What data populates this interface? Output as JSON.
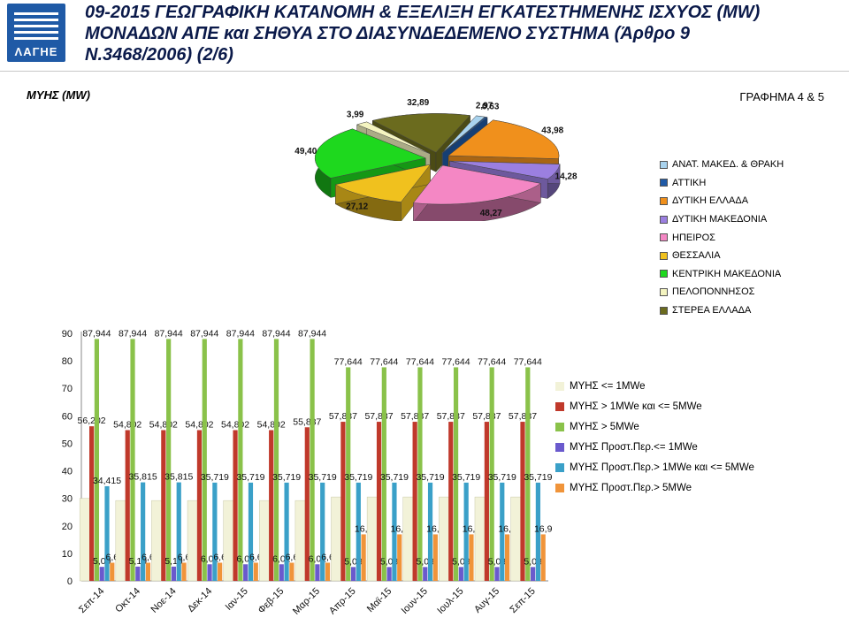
{
  "header": {
    "logo_text": "ΛΑΓΗΕ",
    "title_line1": "09-2015 ΓΕΩΓΡΑΦΙΚΗ ΚΑΤΑΝΟΜΗ & ΕΞΕΛΙΞΗ ΕΓΚΑΤΕΣΤΗΜΕΝΗΣ ΙΣΧΥΟΣ (MW)",
    "title_line2": "ΜΟΝΑΔΩΝ ΑΠΕ και ΣΗΘΥΑ ΣΤΟ ΔΙΑΣΥΝΔΕΔΕΜΕΝΟ ΣΥΣΤΗΜΑ (Άρθρο 9",
    "title_line3": "Ν.3468/2006) (2/6)"
  },
  "section": {
    "left_label": "ΜΥΗΣ (MW)",
    "right_label": "ΓΡΑΦΗΜΑ 4 & 5"
  },
  "chart_data": [
    {
      "type": "pie",
      "title": "",
      "categories": [
        "ΑΝΑΤ. ΜΑΚΕΔ. & ΘΡΑΚΗ",
        "ΑΤΤΙΚΗ",
        "ΔΥΤΙΚΗ ΕΛΛΑΔΑ",
        "ΔΥΤΙΚΗ ΜΑΚΕΔΟΝΙΑ",
        "ΗΠΕΙΡΟΣ",
        "ΘΕΣΣΑΛΙΑ",
        "ΚΕΝΤΡΙΚΗ ΜΑΚΕΔΟΝΙΑ",
        "ΠΕΛΟΠΟΝΝΗΣΟΣ",
        "ΣΤΕΡΕΑ ΕΛΛΑΔΑ"
      ],
      "values": [
        2.97,
        0.63,
        43.98,
        14.28,
        48.27,
        27.12,
        49.4,
        3.99,
        32.89
      ],
      "labels": [
        "2,97",
        "0,63",
        "43,98",
        "14,28",
        "48,27",
        "27,12",
        "49,40",
        "3,99",
        "32,89"
      ],
      "colors": [
        "#a9d3ee",
        "#1f5aa6",
        "#f0901c",
        "#9b7fe0",
        "#f487c4",
        "#f0c11e",
        "#1ed81e",
        "#f4f4c0",
        "#6b6b1e"
      ],
      "legend_position": "right"
    },
    {
      "type": "bar",
      "title": "",
      "xlabel": "",
      "ylabel": "",
      "ylim": [
        0,
        90
      ],
      "yticks": [
        "0",
        "10",
        "20",
        "30",
        "40",
        "50",
        "60",
        "70",
        "80",
        "90"
      ],
      "grid": false,
      "legend_position": "right",
      "categories": [
        "Σεπ-14",
        "Οκτ-14",
        "Νοε-14",
        "Δεκ-14",
        "Ιαν-15",
        "Φεβ-15",
        "Μαρ-15",
        "Απρ-15",
        "Μαϊ-15",
        "Ιουν-15",
        "Ιουλ-15",
        "Αυγ-15",
        "Σεπ-15"
      ],
      "series": [
        {
          "name": "ΜΥΗΣ <= 1MWe",
          "color": "#f2f2d8",
          "values": [
            30,
            29.2,
            29.2,
            29.2,
            29.2,
            29.2,
            29.2,
            30.5,
            30.5,
            30.5,
            30.5,
            30.5,
            30.5
          ],
          "labels": []
        },
        {
          "name": "ΜΥΗΣ > 1MWe και <= 5MWe",
          "color": "#c0392b",
          "values": [
            56.202,
            54.802,
            54.802,
            54.802,
            54.802,
            54.802,
            55.837,
            57.837,
            57.837,
            57.837,
            57.837,
            57.837,
            57.837
          ],
          "labels": [
            "56,202",
            "54,802",
            "54,802",
            "54,802",
            "54,802",
            "54,802",
            "55,837",
            "57,837",
            "57,837",
            "57,837",
            "57,837",
            "57,837",
            "57,837"
          ]
        },
        {
          "name": "ΜΥΗΣ > 5MWe",
          "color": "#8ac24a",
          "values": [
            87.944,
            87.944,
            87.944,
            87.944,
            87.944,
            87.944,
            87.944,
            77.644,
            77.644,
            77.644,
            77.644,
            77.644,
            77.644
          ],
          "labels": [
            "87,944",
            "87,944",
            "87,944",
            "87,944",
            "87,944",
            "87,944",
            "87,944",
            "77,644",
            "77,644",
            "77,644",
            "77,644",
            "77,644",
            "77,644"
          ]
        },
        {
          "name": "ΜΥΗΣ Προστ.Περ.<= 1MWe",
          "color": "#6a5acd",
          "values": [
            5.09,
            5.19,
            5.19,
            6.02,
            6.02,
            6.02,
            6.02,
            5.03,
            5.03,
            5.03,
            5.03,
            5.03,
            5.03
          ],
          "labels": [
            "5,09",
            "5,19",
            "5,19",
            "6,02",
            "6,02",
            "6,02",
            "6,02",
            "5,03",
            "5,03",
            "5,03",
            "5,03",
            "5,03",
            "5,03"
          ]
        },
        {
          "name": "ΜΥΗΣ Προστ.Περ.> 1MWe και <= 5MWe",
          "color": "#3aa0c8",
          "values": [
            34.415,
            35.815,
            35.815,
            35.719,
            35.719,
            35.719,
            35.719,
            35.719,
            35.719,
            35.719,
            35.719,
            35.719,
            35.719
          ],
          "labels": [
            "34,415",
            "35,815",
            "35,815",
            "35,719",
            "35,719",
            "35,719",
            "35,719",
            "35,719",
            "35,719",
            "35,719",
            "35,719",
            "35,719",
            "35,719"
          ]
        },
        {
          "name": "ΜΥΗΣ Προστ.Περ.> 5MWe",
          "color": "#f0943a",
          "values": [
            6.6,
            6.6,
            6.6,
            6.6,
            6.6,
            6.6,
            6.6,
            16.9,
            16.9,
            16.9,
            16.9,
            16.9,
            16.9
          ],
          "labels": [
            "6,6",
            "6,6",
            "6,6",
            "6,6",
            "6,6",
            "6,6",
            "6,6",
            "16,9",
            "16,9",
            "16,9",
            "16,9",
            "16,9",
            "16,9"
          ]
        }
      ]
    }
  ]
}
